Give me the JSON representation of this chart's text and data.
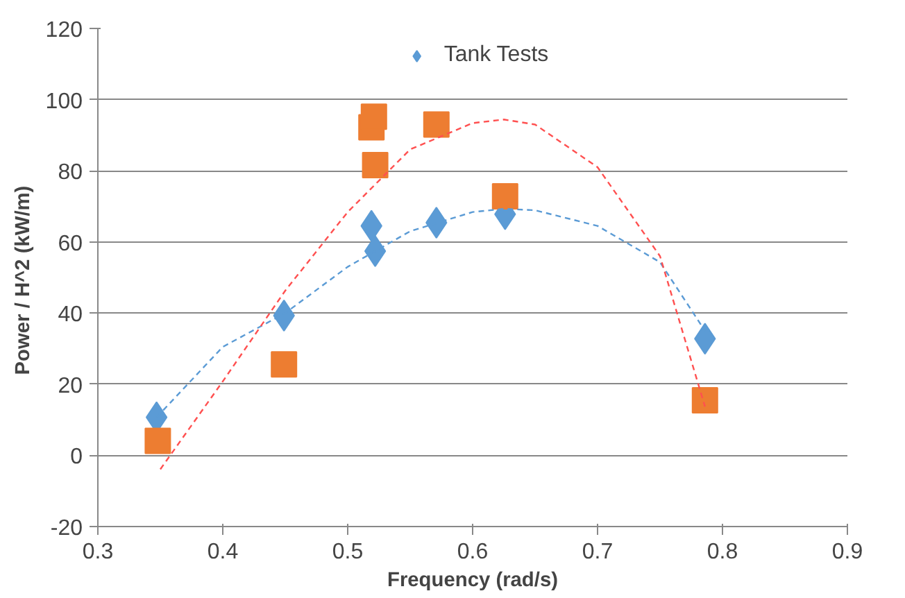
{
  "chart_data": {
    "type": "scatter",
    "xlabel": "Frequency (rad/s)",
    "ylabel": "Power / H^2  (kW/m)",
    "xlim": [
      0.3,
      0.9
    ],
    "xticks": [
      0.3,
      0.4,
      0.5,
      0.6,
      0.7,
      0.8,
      0.9
    ],
    "ylim": [
      -20,
      120
    ],
    "yticks": [
      -20,
      0,
      20,
      40,
      60,
      80,
      100,
      120
    ],
    "grid": "y",
    "legend": "top",
    "series": [
      {
        "name": "Tank Tests",
        "color": "#5b9bd5",
        "marker": "diamond",
        "x": [
          0.347,
          0.449,
          0.519,
          0.522,
          0.571,
          0.626,
          0.786
        ],
        "values": [
          10.7,
          39.3,
          64.5,
          57.4,
          65.4,
          67.8,
          32.8
        ]
      },
      {
        "color": "#ed7d31",
        "marker": "square",
        "x": [
          0.348,
          0.449,
          0.519,
          0.522,
          0.571,
          0.626,
          0.786,
          0.521
        ],
        "values": [
          4.1,
          25.6,
          92.2,
          81.6,
          93.0,
          72.8,
          15.5,
          95.2
        ]
      },
      {
        "type": "line",
        "line_style": "dashed",
        "color": "#5b9bd5",
        "x": [
          0.347,
          0.4,
          0.45,
          0.5,
          0.55,
          0.6,
          0.625,
          0.65,
          0.7,
          0.75,
          0.786
        ],
        "values": [
          10.7,
          30.5,
          40,
          53,
          63,
          68.4,
          69.3,
          68.9,
          64.5,
          54.3,
          35
        ]
      },
      {
        "type": "line",
        "line_style": "dashed",
        "color": "#ff5050",
        "x": [
          0.35,
          0.4,
          0.45,
          0.5,
          0.55,
          0.6,
          0.625,
          0.65,
          0.7,
          0.75,
          0.786
        ],
        "values": [
          -3.9,
          20.8,
          46.3,
          68.4,
          86,
          93.4,
          94.4,
          93,
          81,
          56,
          13.7
        ]
      }
    ]
  }
}
